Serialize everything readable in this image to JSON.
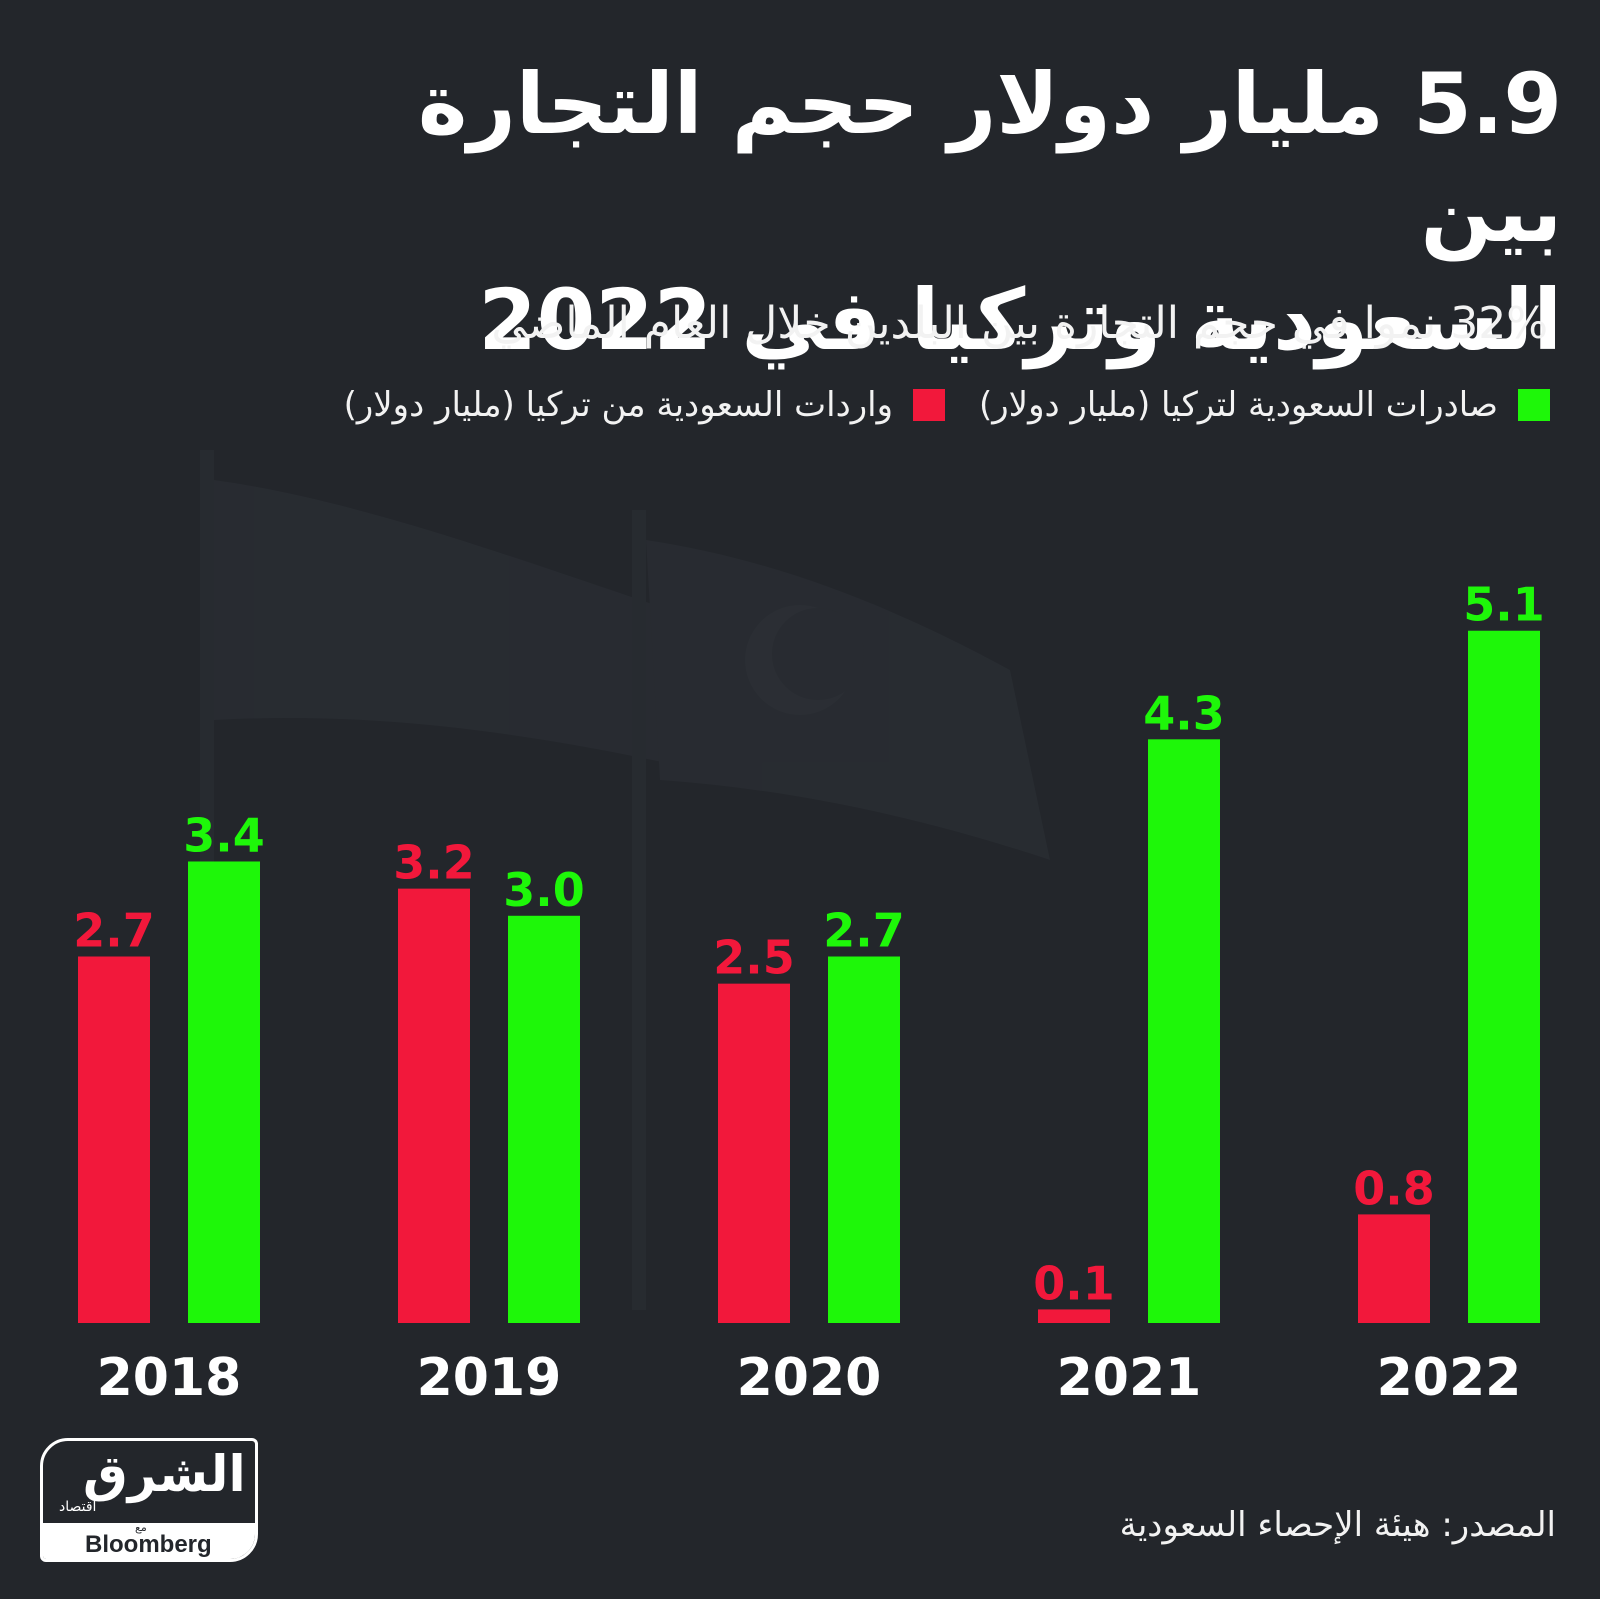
{
  "header": {
    "title_line1": "5.9 مليار دولار حجم التجارة بين",
    "title_line2": "السعودية وتركيا في 2022",
    "subtitle": "32% نموا في حجم التجارة بين البلدين خلال العام الماضي"
  },
  "source": "المصدر: هيئة الإحصاء السعودية",
  "logo": {
    "name": "الشرق",
    "sub": "اقتصاد",
    "with": "مع",
    "partner": "Bloomberg"
  },
  "colors": {
    "background": "#23262b",
    "exports": "#1ef709",
    "imports": "#f2183b",
    "text": "#ffffff"
  },
  "chart_data": {
    "type": "bar",
    "title": "5.9 مليار دولار حجم التجارة بين السعودية وتركيا في 2022",
    "subtitle": "32% نموا في حجم التجارة بين البلدين خلال العام الماضي",
    "categories": [
      "2018",
      "2019",
      "2020",
      "2021",
      "2022"
    ],
    "series": [
      {
        "name": "واردات السعودية من تركيا (مليار دولار)",
        "color": "#f2183b",
        "values": [
          2.7,
          3.2,
          2.5,
          0.1,
          0.8
        ]
      },
      {
        "name": "صادرات السعودية لتركيا (مليار دولار)",
        "color": "#1ef709",
        "values": [
          3.4,
          3.0,
          2.7,
          4.3,
          5.1
        ]
      }
    ],
    "value_labels": {
      "imports": [
        "2.7",
        "3.2",
        "2.5",
        "0.1",
        "0.8"
      ],
      "exports": [
        "3.4",
        "3.0",
        "2.7",
        "4.3",
        "5.1"
      ]
    },
    "ylim": [
      0,
      5.4
    ],
    "grid": false,
    "legend_position": "top-right"
  }
}
